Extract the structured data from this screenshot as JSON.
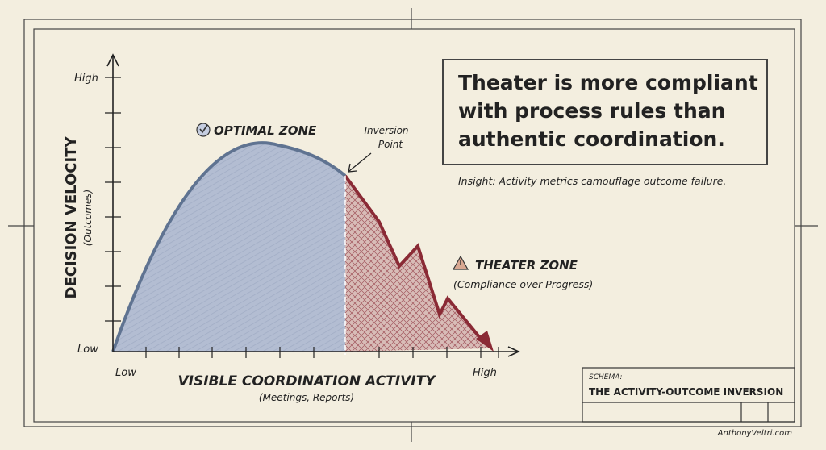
{
  "colors": {
    "paper": "#f3eedf",
    "ink": "#222222",
    "optimal_fill": "#a9b5cc",
    "optimal_stroke": "#5f7391",
    "theater_fill": "#c9a3a0",
    "theater_stroke": "#8a2a35"
  },
  "y_axis": {
    "title": "DECISION VELOCITY",
    "subtitle": "(Outcomes)",
    "high": "High",
    "low": "Low"
  },
  "x_axis": {
    "title": "VISIBLE COORDINATION ACTIVITY",
    "subtitle": "(Meetings, Reports)",
    "low": "Low",
    "high": "High"
  },
  "optimal_zone": {
    "label": "OPTIMAL ZONE",
    "icon": "check-circle-icon"
  },
  "inversion_point": {
    "line1": "Inversion",
    "line2": "Point"
  },
  "theater_zone": {
    "label": "THEATER ZONE",
    "subtitle": "(Compliance over Progress)",
    "icon": "warning-triangle-icon"
  },
  "headline": {
    "line1": "Theater is more compliant",
    "line2": "with process rules than",
    "line3": "authentic coordination."
  },
  "insight": "Insight: Activity metrics camouflage outcome failure.",
  "schema": {
    "label": "SCHEMA:",
    "title": "THE ACTIVITY-OUTCOME INVERSION"
  },
  "credit": "AnthonyVeltri.com"
}
